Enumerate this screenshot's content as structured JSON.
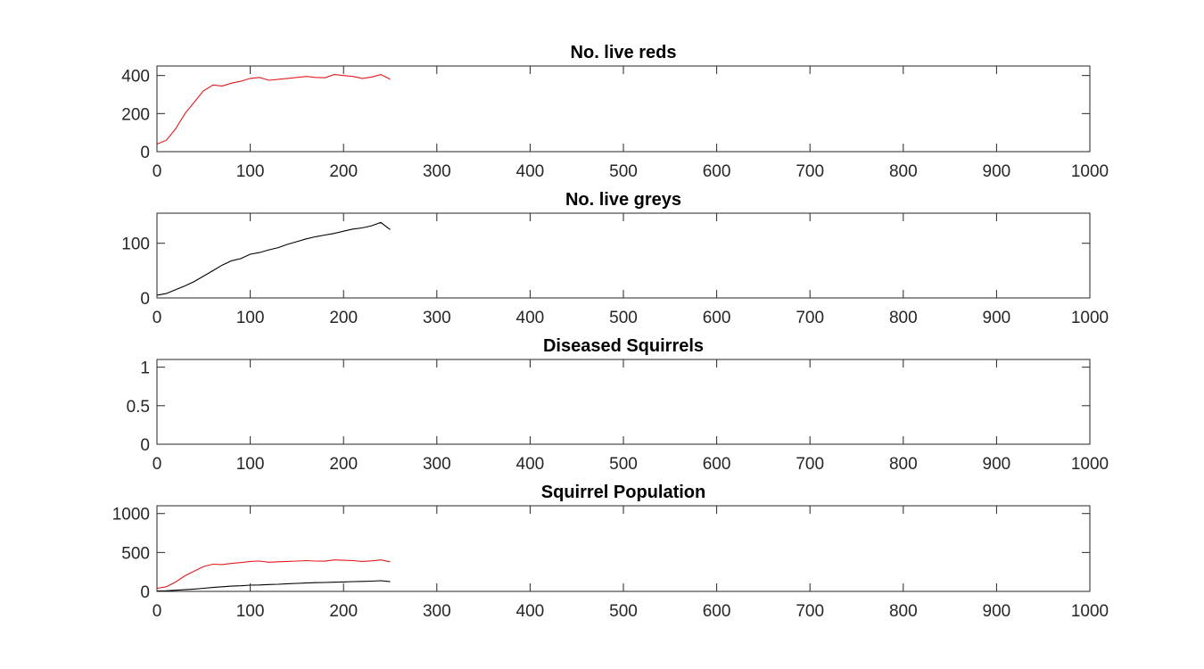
{
  "colors": {
    "red": "#e41a1c",
    "black": "#000000",
    "axis": "#262626",
    "background": "#ffffff"
  },
  "chart_data": [
    {
      "type": "line",
      "title": "No. live reds",
      "xlabel": "",
      "ylabel": "",
      "xlim": [
        0,
        1000
      ],
      "ylim": [
        0,
        450
      ],
      "xticks": [
        0,
        100,
        200,
        300,
        400,
        500,
        600,
        700,
        800,
        900,
        1000
      ],
      "yticks": [
        0,
        200,
        400
      ],
      "grid": false,
      "series": [
        {
          "color": "#e41a1c",
          "x": [
            0,
            10,
            20,
            30,
            40,
            50,
            60,
            70,
            80,
            90,
            100,
            110,
            120,
            130,
            140,
            150,
            160,
            170,
            180,
            190,
            200,
            210,
            220,
            230,
            240,
            250
          ],
          "y": [
            40,
            60,
            120,
            200,
            260,
            320,
            350,
            345,
            360,
            370,
            385,
            390,
            375,
            380,
            385,
            390,
            395,
            390,
            388,
            405,
            400,
            395,
            385,
            392,
            405,
            380
          ]
        }
      ]
    },
    {
      "type": "line",
      "title": "No. live greys",
      "xlabel": "",
      "ylabel": "",
      "xlim": [
        0,
        1000
      ],
      "ylim": [
        0,
        155
      ],
      "xticks": [
        0,
        100,
        200,
        300,
        400,
        500,
        600,
        700,
        800,
        900,
        1000
      ],
      "yticks": [
        0,
        100
      ],
      "grid": false,
      "series": [
        {
          "color": "#000000",
          "x": [
            0,
            10,
            20,
            30,
            40,
            50,
            60,
            70,
            80,
            90,
            100,
            110,
            120,
            130,
            140,
            150,
            160,
            170,
            180,
            190,
            200,
            210,
            220,
            230,
            240,
            250
          ],
          "y": [
            5,
            8,
            15,
            22,
            30,
            40,
            50,
            60,
            68,
            72,
            80,
            83,
            88,
            92,
            98,
            103,
            108,
            112,
            115,
            118,
            122,
            126,
            128,
            132,
            138,
            125
          ]
        }
      ]
    },
    {
      "type": "line",
      "title": "Diseased Squirrels",
      "xlabel": "",
      "ylabel": "",
      "xlim": [
        0,
        1000
      ],
      "ylim": [
        0,
        1.1
      ],
      "xticks": [
        0,
        100,
        200,
        300,
        400,
        500,
        600,
        700,
        800,
        900,
        1000
      ],
      "yticks": [
        0,
        0.5,
        1
      ],
      "grid": false,
      "series": [
        {
          "color": "#e41a1c",
          "x": [
            0,
            250
          ],
          "y": [
            0,
            0
          ]
        }
      ]
    },
    {
      "type": "line",
      "title": "Squirrel Population",
      "xlabel": "",
      "ylabel": "",
      "xlim": [
        0,
        1000
      ],
      "ylim": [
        0,
        1100
      ],
      "xticks": [
        0,
        100,
        200,
        300,
        400,
        500,
        600,
        700,
        800,
        900,
        1000
      ],
      "yticks": [
        0,
        500,
        1000
      ],
      "grid": false,
      "series": [
        {
          "color": "#e41a1c",
          "x": [
            0,
            10,
            20,
            30,
            40,
            50,
            60,
            70,
            80,
            90,
            100,
            110,
            120,
            130,
            140,
            150,
            160,
            170,
            180,
            190,
            200,
            210,
            220,
            230,
            240,
            250
          ],
          "y": [
            40,
            60,
            120,
            200,
            260,
            320,
            350,
            345,
            360,
            370,
            385,
            390,
            375,
            380,
            385,
            390,
            395,
            390,
            388,
            405,
            400,
            395,
            385,
            392,
            405,
            380
          ]
        },
        {
          "color": "#000000",
          "x": [
            0,
            10,
            20,
            30,
            40,
            50,
            60,
            70,
            80,
            90,
            100,
            110,
            120,
            130,
            140,
            150,
            160,
            170,
            180,
            190,
            200,
            210,
            220,
            230,
            240,
            250
          ],
          "y": [
            5,
            8,
            15,
            22,
            30,
            40,
            50,
            60,
            68,
            72,
            80,
            83,
            88,
            92,
            98,
            103,
            108,
            112,
            115,
            118,
            122,
            126,
            128,
            132,
            138,
            125
          ]
        }
      ]
    }
  ]
}
